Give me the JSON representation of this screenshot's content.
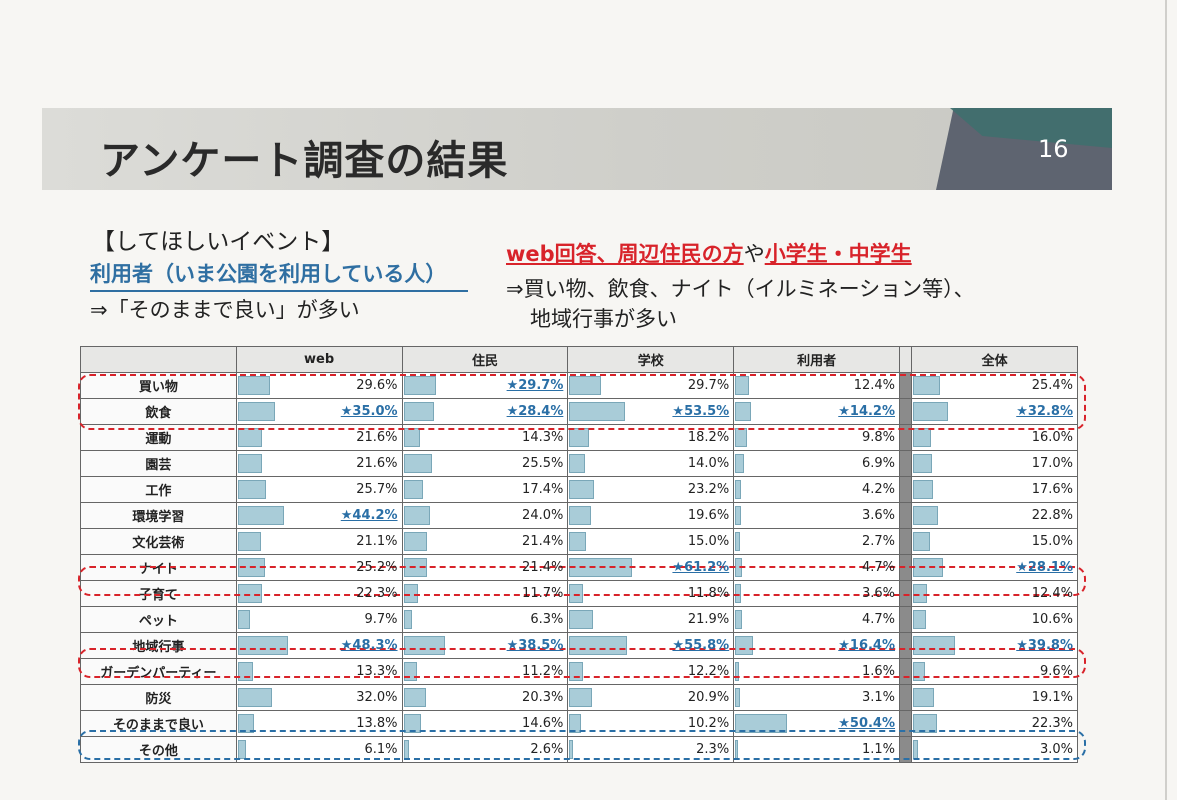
{
  "header": {
    "title": "アンケート調査の結果",
    "page_number": "16"
  },
  "section": {
    "title": "【してほしいイベント】",
    "subtitle": "利用者（いま公園を利用している人）",
    "note": "⇒「そのままで良い」が多い"
  },
  "right_note": {
    "part1": "web回答、周辺住民の方",
    "part2": "や",
    "part3": "小学生・中学生",
    "line1": "⇒買い物、飲食、ナイト（イルミネーション等）、",
    "line2": "地域行事が多い"
  },
  "table": {
    "columns": [
      "web",
      "住民",
      "学校",
      "利用者",
      "全体"
    ],
    "rows": [
      {
        "label": "買い物",
        "values": [
          29.6,
          29.7,
          29.7,
          12.4,
          25.4
        ],
        "display": [
          "29.6%",
          "★29.7%",
          "29.7%",
          "12.4%",
          "25.4%"
        ],
        "starred": [
          false,
          true,
          false,
          false,
          false
        ]
      },
      {
        "label": "飲食",
        "values": [
          35.0,
          28.4,
          53.5,
          14.2,
          32.8
        ],
        "display": [
          "★35.0%",
          "★28.4%",
          "★53.5%",
          "★14.2%",
          "★32.8%"
        ],
        "starred": [
          true,
          true,
          true,
          true,
          true
        ]
      },
      {
        "label": "運動",
        "values": [
          21.6,
          14.3,
          18.2,
          9.8,
          16.0
        ],
        "display": [
          "21.6%",
          "14.3%",
          "18.2%",
          "9.8%",
          "16.0%"
        ],
        "starred": [
          false,
          false,
          false,
          false,
          false
        ]
      },
      {
        "label": "園芸",
        "values": [
          21.6,
          25.5,
          14.0,
          6.9,
          17.0
        ],
        "display": [
          "21.6%",
          "25.5%",
          "14.0%",
          "6.9%",
          "17.0%"
        ],
        "starred": [
          false,
          false,
          false,
          false,
          false
        ]
      },
      {
        "label": "工作",
        "values": [
          25.7,
          17.4,
          23.2,
          4.2,
          17.6
        ],
        "display": [
          "25.7%",
          "17.4%",
          "23.2%",
          "4.2%",
          "17.6%"
        ],
        "starred": [
          false,
          false,
          false,
          false,
          false
        ]
      },
      {
        "label": "環境学習",
        "values": [
          44.2,
          24.0,
          19.6,
          3.6,
          22.8
        ],
        "display": [
          "★44.2%",
          "24.0%",
          "19.6%",
          "3.6%",
          "22.8%"
        ],
        "starred": [
          true,
          false,
          false,
          false,
          false
        ]
      },
      {
        "label": "文化芸術",
        "values": [
          21.1,
          21.4,
          15.0,
          2.7,
          15.0
        ],
        "display": [
          "21.1%",
          "21.4%",
          "15.0%",
          "2.7%",
          "15.0%"
        ],
        "starred": [
          false,
          false,
          false,
          false,
          false
        ]
      },
      {
        "label": "ナイト",
        "values": [
          25.2,
          21.4,
          61.2,
          4.7,
          28.1
        ],
        "display": [
          "25.2%",
          "21.4%",
          "★61.2%",
          "4.7%",
          "★28.1%"
        ],
        "starred": [
          false,
          false,
          true,
          false,
          true
        ]
      },
      {
        "label": "子育て",
        "values": [
          22.3,
          11.7,
          11.8,
          3.6,
          12.4
        ],
        "display": [
          "22.3%",
          "11.7%",
          "11.8%",
          "3.6%",
          "12.4%"
        ],
        "starred": [
          false,
          false,
          false,
          false,
          false
        ]
      },
      {
        "label": "ペット",
        "values": [
          9.7,
          6.3,
          21.9,
          4.7,
          10.6
        ],
        "display": [
          "9.7%",
          "6.3%",
          "21.9%",
          "4.7%",
          "10.6%"
        ],
        "starred": [
          false,
          false,
          false,
          false,
          false
        ]
      },
      {
        "label": "地域行事",
        "values": [
          48.3,
          38.5,
          55.8,
          16.4,
          39.8
        ],
        "display": [
          "★48.3%",
          "★38.5%",
          "★55.8%",
          "★16.4%",
          "★39.8%"
        ],
        "starred": [
          true,
          true,
          true,
          true,
          true
        ]
      },
      {
        "label": "ガーデンパーティー",
        "values": [
          13.3,
          11.2,
          12.2,
          1.6,
          9.6
        ],
        "display": [
          "13.3%",
          "11.2%",
          "12.2%",
          "1.6%",
          "9.6%"
        ],
        "starred": [
          false,
          false,
          false,
          false,
          false
        ]
      },
      {
        "label": "防災",
        "values": [
          32.0,
          20.3,
          20.9,
          3.1,
          19.1
        ],
        "display": [
          "32.0%",
          "20.3%",
          "20.9%",
          "3.1%",
          "19.1%"
        ],
        "starred": [
          false,
          false,
          false,
          false,
          false
        ]
      },
      {
        "label": "そのままで良い",
        "values": [
          13.8,
          14.6,
          10.2,
          50.4,
          22.3
        ],
        "display": [
          "13.8%",
          "14.6%",
          "10.2%",
          "★50.4%",
          "22.3%"
        ],
        "starred": [
          false,
          false,
          false,
          true,
          false
        ]
      },
      {
        "label": "その他",
        "values": [
          6.1,
          2.6,
          2.3,
          1.1,
          3.0
        ],
        "display": [
          "6.1%",
          "2.6%",
          "2.3%",
          "1.1%",
          "3.0%"
        ],
        "starred": [
          false,
          false,
          false,
          false,
          false
        ]
      }
    ],
    "bar_color": "#a9ccd8",
    "highlight_red": "#d8232a",
    "highlight_blue": "#2a6fa6"
  }
}
